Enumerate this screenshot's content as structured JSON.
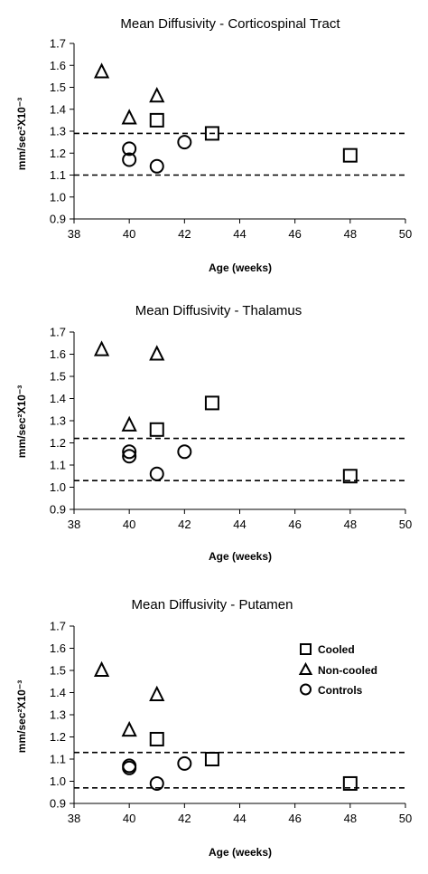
{
  "chart_data": [
    {
      "type": "scatter",
      "title": "Mean Diffusivity - Corticospinal Tract",
      "xlabel": "Age (weeks)",
      "ylabel": "mm/sec²X10⁻³",
      "xlim": [
        38,
        50
      ],
      "ylim": [
        0.9,
        1.7
      ],
      "xticks": [
        "38",
        "40",
        "42",
        "44",
        "46",
        "48",
        "50"
      ],
      "yticks": [
        "0.9",
        "1.0",
        "1.1",
        "1.2",
        "1.3",
        "1.4",
        "1.5",
        "1.6",
        "1.7"
      ],
      "grid": false,
      "reference_lines": [
        1.29,
        1.1
      ],
      "series": [
        {
          "name": "Cooled",
          "marker": "square",
          "x": [
            41,
            43,
            48
          ],
          "y": [
            1.35,
            1.29,
            1.19
          ]
        },
        {
          "name": "Non-cooled",
          "marker": "triangle",
          "x": [
            39,
            40,
            41
          ],
          "y": [
            1.57,
            1.36,
            1.46
          ]
        },
        {
          "name": "Controls",
          "marker": "circle",
          "x": [
            40,
            40,
            41,
            42
          ],
          "y": [
            1.22,
            1.17,
            1.14,
            1.25
          ]
        }
      ]
    },
    {
      "type": "scatter",
      "title": "Mean Diffusivity  - Thalamus",
      "xlabel": "Age (weeks)",
      "ylabel": "mm/sec²X10⁻³",
      "xlim": [
        38,
        50
      ],
      "ylim": [
        0.9,
        1.7
      ],
      "xticks": [
        "38",
        "40",
        "42",
        "44",
        "46",
        "48",
        "50"
      ],
      "yticks": [
        "0.9",
        "1.0",
        "1.1",
        "1.2",
        "1.3",
        "1.4",
        "1.5",
        "1.6",
        "1.7"
      ],
      "grid": false,
      "reference_lines": [
        1.22,
        1.03
      ],
      "series": [
        {
          "name": "Cooled",
          "marker": "square",
          "x": [
            41,
            43,
            48
          ],
          "y": [
            1.26,
            1.38,
            1.05
          ]
        },
        {
          "name": "Non-cooled",
          "marker": "triangle",
          "x": [
            39,
            40,
            41
          ],
          "y": [
            1.62,
            1.28,
            1.6
          ]
        },
        {
          "name": "Controls",
          "marker": "circle",
          "x": [
            40,
            40,
            41,
            42
          ],
          "y": [
            1.16,
            1.14,
            1.06,
            1.16
          ]
        }
      ]
    },
    {
      "type": "scatter",
      "title": "Mean Diffusivity - Putamen",
      "xlabel": "Age (weeks)",
      "ylabel": "mm/sec²X10⁻³",
      "xlim": [
        38,
        50
      ],
      "ylim": [
        0.9,
        1.7
      ],
      "xticks": [
        "38",
        "40",
        "42",
        "44",
        "46",
        "48",
        "50"
      ],
      "yticks": [
        "0.9",
        "1.0",
        "1.1",
        "1.2",
        "1.3",
        "1.4",
        "1.5",
        "1.6",
        "1.7"
      ],
      "grid": false,
      "reference_lines": [
        1.13,
        0.97
      ],
      "legend": {
        "placement": "top-right",
        "entries": [
          {
            "label": "Cooled",
            "marker": "square"
          },
          {
            "label": "Non-cooled",
            "marker": "triangle"
          },
          {
            "label": "Controls",
            "marker": "circle"
          }
        ]
      },
      "series": [
        {
          "name": "Cooled",
          "marker": "square",
          "x": [
            41,
            43,
            48
          ],
          "y": [
            1.19,
            1.1,
            0.99
          ]
        },
        {
          "name": "Non-cooled",
          "marker": "triangle",
          "x": [
            39,
            40,
            41
          ],
          "y": [
            1.5,
            1.23,
            1.39
          ]
        },
        {
          "name": "Controls",
          "marker": "circle",
          "x": [
            40,
            40,
            41,
            42
          ],
          "y": [
            1.07,
            1.06,
            0.99,
            1.08
          ]
        }
      ]
    }
  ]
}
